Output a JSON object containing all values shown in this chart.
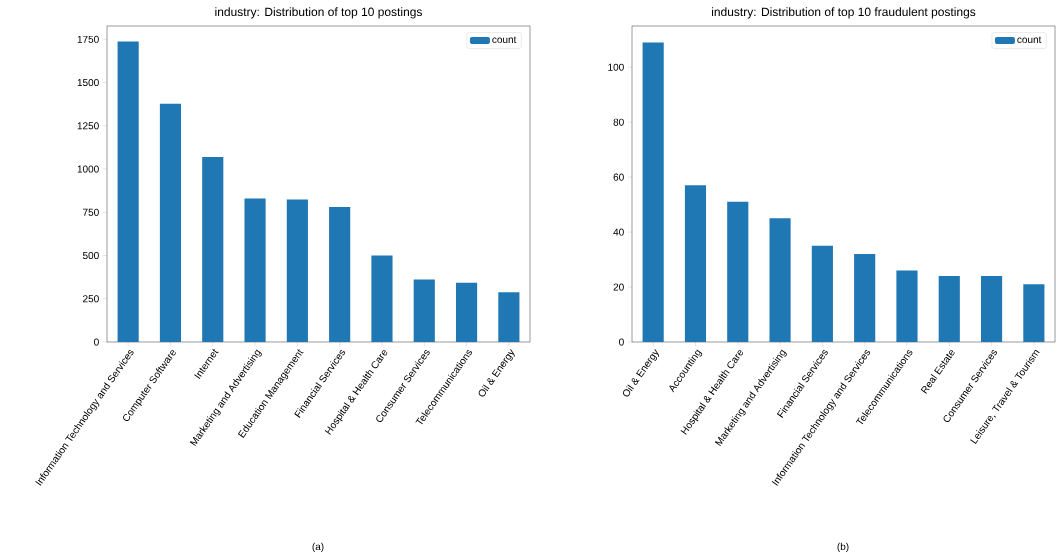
{
  "chart_data": [
    {
      "type": "bar",
      "title": "industry: Distribution of top 10 postings",
      "categories": [
        "Information Technology and Services",
        "Computer Software",
        "Internet",
        "Marketing and Advertising",
        "Education Management",
        "Financial Services",
        "Hospital & Health Care",
        "Consumer Services",
        "Telecommunications",
        "Oil & Energy"
      ],
      "series": [
        {
          "name": "count",
          "color": "#1f77b4",
          "values": [
            1738,
            1378,
            1069,
            830,
            824,
            780,
            500,
            362,
            343,
            287
          ]
        }
      ],
      "ylim": [
        0,
        1827
      ],
      "yticks": [
        0,
        250,
        500,
        750,
        1000,
        1250,
        1500,
        1750
      ],
      "legend": "top right",
      "annotations": [
        "(a)"
      ]
    },
    {
      "type": "bar",
      "title": "industry: Distribution of top 10 fraudulent postings",
      "categories": [
        "Oil & Energy",
        "Accounting",
        "Hospital & Health Care",
        "Marketing and Advertising",
        "Financial Services",
        "Information Technology and Services",
        "Telecommunications",
        "Real Estate",
        "Consumer Services",
        "Leisure, Travel & Tourism"
      ],
      "series": [
        {
          "name": "count",
          "color": "#1f77b4",
          "values": [
            109,
            57,
            51,
            45,
            35,
            32,
            26,
            24,
            24,
            21
          ]
        }
      ],
      "ylim": [
        0,
        115
      ],
      "yticks": [
        0,
        20,
        40,
        60,
        80,
        100
      ],
      "legend": "top right",
      "annotations": [
        "(b)"
      ]
    }
  ]
}
